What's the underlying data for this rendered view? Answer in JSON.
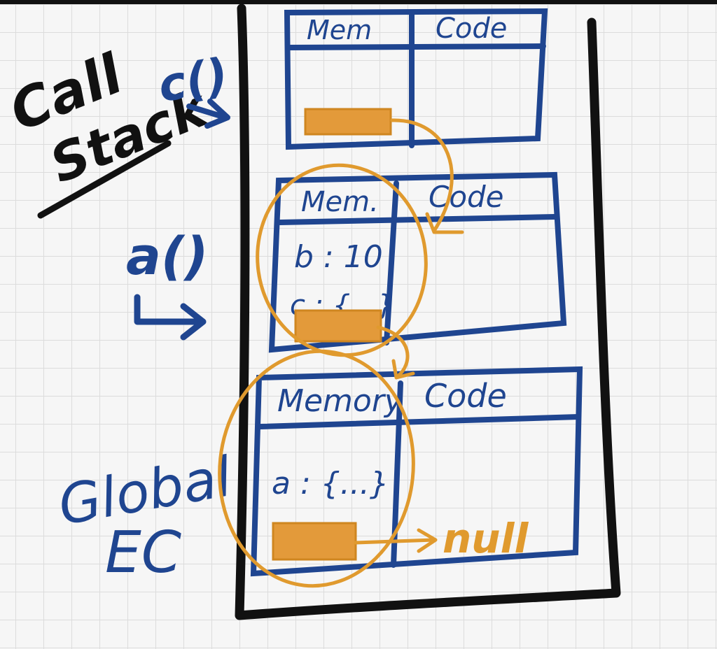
{
  "labels": {
    "call": "Call",
    "stack": "Stack",
    "c_call": "c()",
    "a_call": "a()",
    "global": "Global",
    "ec": "EC",
    "null": "null"
  },
  "frames": [
    {
      "memory_header": "Mem",
      "code_header": "Code",
      "memory_items": []
    },
    {
      "memory_header": "Mem.",
      "code_header": "Code",
      "memory_items": [
        "b : 10",
        "c : {...}"
      ]
    },
    {
      "memory_header": "Memory",
      "code_header": "Code",
      "memory_items": [
        "a : {...}"
      ]
    }
  ],
  "colors": {
    "ink_blue": "#1f4590",
    "ink_black": "#111111",
    "ink_orange": "#e09a2e",
    "lexical_env_block": "#e39a3a"
  }
}
